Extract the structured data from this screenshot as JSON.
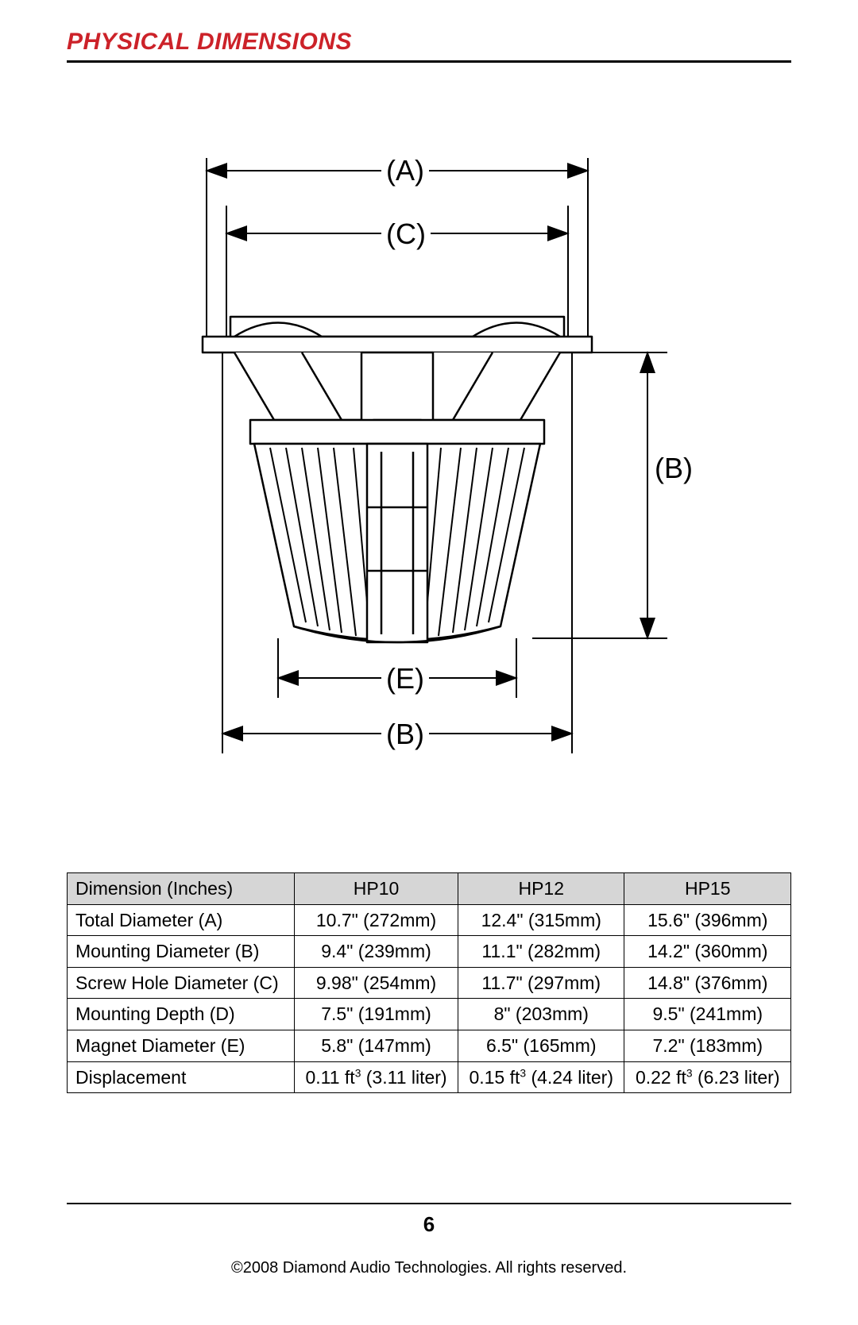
{
  "title": "PHYSICAL DIMENSIONS",
  "title_color": "#cc2229",
  "diagram": {
    "labels": {
      "A": "(A)",
      "C": "(C)",
      "B_right": "(B)",
      "E": "(E)",
      "B_bottom": "(B)"
    }
  },
  "table": {
    "header_bg": "#d6d6d6",
    "border_color": "#000000",
    "columns": [
      "Dimension (Inches)",
      "HP10",
      "HP12",
      "HP15"
    ],
    "rows": [
      [
        "Total Diameter (A)",
        "10.7\" (272mm)",
        "12.4\" (315mm)",
        "15.6\" (396mm)"
      ],
      [
        "Mounting Diameter (B)",
        "9.4\" (239mm)",
        "11.1\" (282mm)",
        "14.2\" (360mm)"
      ],
      [
        "Screw Hole Diameter (C)",
        "9.98\" (254mm)",
        "11.7\" (297mm)",
        "14.8\" (376mm)"
      ],
      [
        "Mounting Depth (D)",
        "7.5\" (191mm)",
        "8\" (203mm)",
        "9.5\" (241mm)"
      ],
      [
        "Magnet Diameter (E)",
        "5.8\" (147mm)",
        "6.5\" (165mm)",
        "7.2\" (183mm)"
      ],
      [
        "Displacement",
        "0.11 ft³ (3.11 liter)",
        "0.15 ft³ (4.24 liter)",
        "0.22 ft³ (6.23 liter)"
      ]
    ]
  },
  "footer": {
    "page_number": "6",
    "copyright": "©2008 Diamond Audio Technologies. All rights reserved."
  }
}
